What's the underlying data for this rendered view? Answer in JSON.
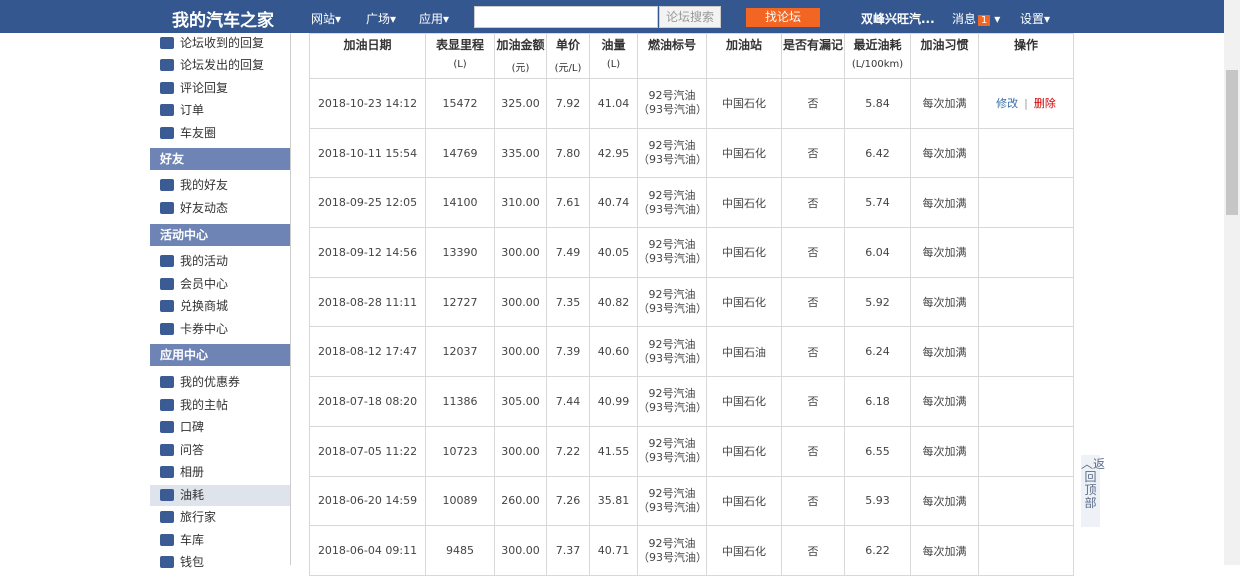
{
  "topbar": {
    "logo": "我的汽车之家",
    "nav": [
      "网站▾",
      "广场▾",
      "应用▾"
    ],
    "search_placeholder": "",
    "search_button": "论坛搜索",
    "forum_button": "找论坛",
    "username": "双峰兴旺汽...",
    "messages": "消息",
    "message_count": "1",
    "settings": "设置▾"
  },
  "sidebar": {
    "items_top": [
      "论坛收到的回复",
      "论坛发出的回复",
      "评论回复",
      "订单",
      "车友圈"
    ],
    "friends_header": "好友",
    "friends": [
      "我的好友",
      "好友动态"
    ],
    "activity_header": "活动中心",
    "activity": [
      "我的活动",
      "会员中心",
      "兑换商城",
      "卡券中心"
    ],
    "apps_header": "应用中心",
    "apps": [
      "我的优惠券",
      "我的主帖",
      "口碑",
      "问答",
      "相册",
      "油耗",
      "旅行家",
      "车库",
      "钱包"
    ],
    "selected": "油耗"
  },
  "table": {
    "headers": [
      {
        "t": "加油日期",
        "u": ""
      },
      {
        "t": "表显里程",
        "u": "(L)"
      },
      {
        "t": "加油金额",
        "u": "(元)"
      },
      {
        "t": "单价",
        "u": "(元/L)"
      },
      {
        "t": "油量",
        "u": "(L)"
      },
      {
        "t": "燃油标号",
        "u": ""
      },
      {
        "t": "加油站",
        "u": ""
      },
      {
        "t": "是否有漏记",
        "u": ""
      },
      {
        "t": "最近油耗",
        "u": "(L/100km)"
      },
      {
        "t": "加油习惯",
        "u": ""
      },
      {
        "t": "操作",
        "u": ""
      }
    ],
    "rows": [
      [
        "2018-10-23 14:12",
        "15472",
        "325.00",
        "7.92",
        "41.04",
        "92号汽油（93号汽油）",
        "中国石化",
        "否",
        "5.84",
        "每次加满"
      ],
      [
        "2018-10-11 15:54",
        "14769",
        "335.00",
        "7.80",
        "42.95",
        "92号汽油（93号汽油）",
        "中国石化",
        "否",
        "6.42",
        "每次加满"
      ],
      [
        "2018-09-25 12:05",
        "14100",
        "310.00",
        "7.61",
        "40.74",
        "92号汽油（93号汽油）",
        "中国石化",
        "否",
        "5.74",
        "每次加满"
      ],
      [
        "2018-09-12 14:56",
        "13390",
        "300.00",
        "7.49",
        "40.05",
        "92号汽油（93号汽油）",
        "中国石化",
        "否",
        "6.04",
        "每次加满"
      ],
      [
        "2018-08-28 11:11",
        "12727",
        "300.00",
        "7.35",
        "40.82",
        "92号汽油（93号汽油）",
        "中国石化",
        "否",
        "5.92",
        "每次加满"
      ],
      [
        "2018-08-12 17:47",
        "12037",
        "300.00",
        "7.39",
        "40.60",
        "92号汽油（93号汽油）",
        "中国石油",
        "否",
        "6.24",
        "每次加满"
      ],
      [
        "2018-07-18 08:20",
        "11386",
        "305.00",
        "7.44",
        "40.99",
        "92号汽油（93号汽油）",
        "中国石化",
        "否",
        "6.18",
        "每次加满"
      ],
      [
        "2018-07-05 11:22",
        "10723",
        "300.00",
        "7.22",
        "41.55",
        "92号汽油（93号汽油）",
        "中国石化",
        "否",
        "6.55",
        "每次加满"
      ],
      [
        "2018-06-20 14:59",
        "10089",
        "260.00",
        "7.26",
        "35.81",
        "92号汽油（93号汽油）",
        "中国石化",
        "否",
        "5.93",
        "每次加满"
      ],
      [
        "2018-06-04 09:11",
        "9485",
        "300.00",
        "7.37",
        "40.71",
        "92号汽油（93号汽油）",
        "中国石化",
        "否",
        "6.22",
        "每次加满"
      ]
    ],
    "edit_label": "修改",
    "separator": "|",
    "delete_label": "删除"
  },
  "back_to_top": "︿返回顶部"
}
